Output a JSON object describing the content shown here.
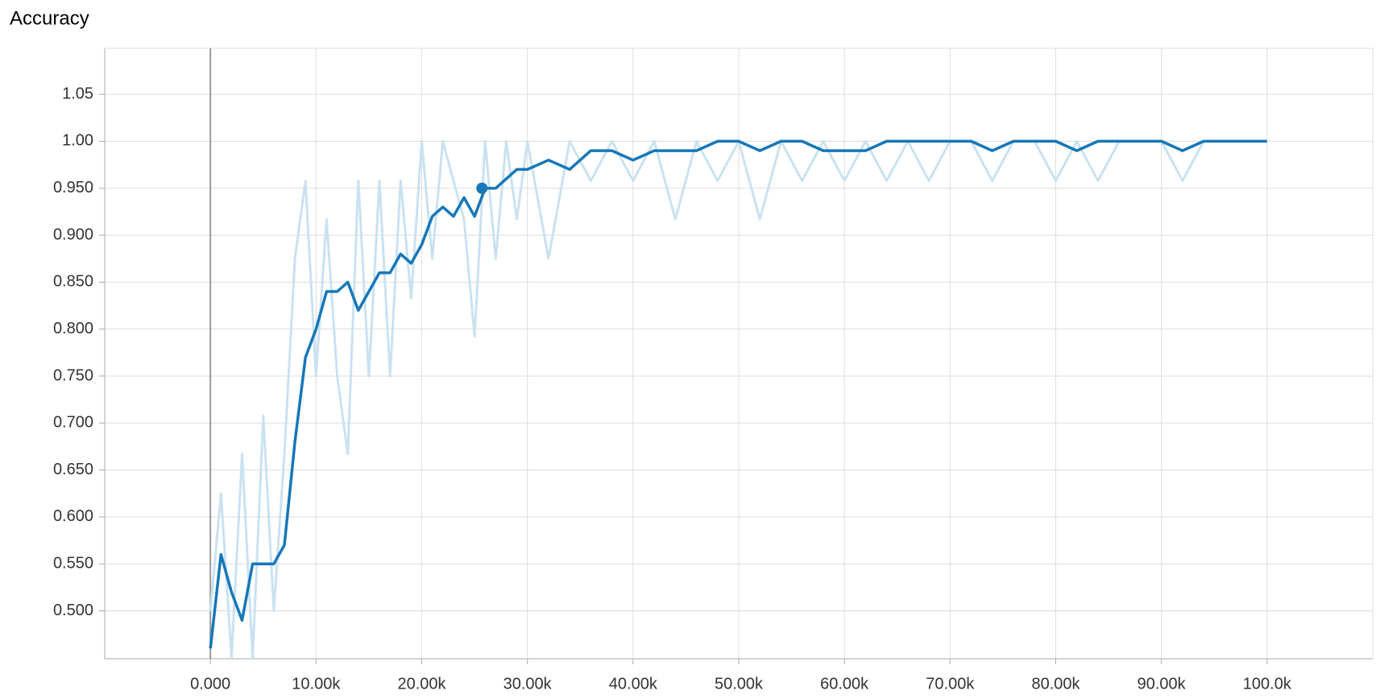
{
  "chart_data": {
    "type": "line",
    "title": "Accuracy",
    "x": [
      0,
      1000,
      2000,
      3000,
      4000,
      5000,
      6000,
      7000,
      8000,
      9000,
      10000,
      11000,
      12000,
      13000,
      14000,
      15000,
      16000,
      17000,
      18000,
      19000,
      20000,
      21000,
      22000,
      23000,
      24000,
      25000,
      26000,
      27000,
      28000,
      29000,
      30000,
      32000,
      34000,
      36000,
      38000,
      40000,
      42000,
      44000,
      46000,
      48000,
      50000,
      52000,
      54000,
      56000,
      58000,
      60000,
      62000,
      64000,
      66000,
      68000,
      70000,
      72000,
      74000,
      76000,
      78000,
      80000,
      82000,
      84000,
      86000,
      88000,
      90000,
      92000,
      94000,
      96000,
      98000,
      100000
    ],
    "series": [
      {
        "color": "#c9e2f1",
        "values": [
          0.5,
          0.625,
          0.45,
          0.667,
          0.45,
          0.708,
          0.5,
          0.667,
          0.875,
          0.958,
          0.75,
          0.917,
          0.75,
          0.667,
          0.958,
          0.75,
          0.958,
          0.75,
          0.958,
          0.833,
          1.0,
          0.875,
          1.0,
          0.958,
          0.917,
          0.792,
          1.0,
          0.875,
          1.0,
          0.917,
          1.0,
          0.875,
          1.0,
          0.958,
          1.0,
          0.958,
          1.0,
          0.917,
          1.0,
          0.958,
          1.0,
          0.917,
          1.0,
          0.958,
          1.0,
          0.958,
          1.0,
          0.958,
          1.0,
          0.958,
          1.0,
          1.0,
          0.958,
          1.0,
          1.0,
          0.958,
          1.0,
          0.958,
          1.0,
          1.0,
          1.0,
          0.958,
          1.0,
          1.0,
          1.0,
          1.0
        ]
      },
      {
        "color": "#1677b8",
        "values": [
          0.46,
          0.56,
          0.52,
          0.49,
          0.55,
          0.55,
          0.55,
          0.57,
          0.68,
          0.77,
          0.8,
          0.84,
          0.84,
          0.85,
          0.82,
          0.84,
          0.86,
          0.86,
          0.88,
          0.87,
          0.89,
          0.92,
          0.93,
          0.92,
          0.94,
          0.92,
          0.95,
          0.95,
          0.96,
          0.97,
          0.97,
          0.98,
          0.97,
          0.99,
          0.99,
          0.98,
          0.99,
          0.99,
          0.99,
          1.0,
          1.0,
          0.99,
          1.0,
          1.0,
          0.99,
          0.99,
          0.99,
          1.0,
          1.0,
          1.0,
          1.0,
          1.0,
          0.99,
          1.0,
          1.0,
          1.0,
          0.99,
          1.0,
          1.0,
          1.0,
          1.0,
          0.99,
          1.0,
          1.0,
          1.0,
          1.0
        ]
      }
    ],
    "highlight": {
      "x": 25700,
      "y": 0.95
    },
    "xlim": [
      -10000,
      110000
    ],
    "xticks": [
      {
        "value": 0,
        "label": "0.000"
      },
      {
        "value": 10000,
        "label": "10.00k"
      },
      {
        "value": 20000,
        "label": "20.00k"
      },
      {
        "value": 30000,
        "label": "30.00k"
      },
      {
        "value": 40000,
        "label": "40.00k"
      },
      {
        "value": 50000,
        "label": "50.00k"
      },
      {
        "value": 60000,
        "label": "60.00k"
      },
      {
        "value": 70000,
        "label": "70.00k"
      },
      {
        "value": 80000,
        "label": "80.00k"
      },
      {
        "value": 90000,
        "label": "90.00k"
      },
      {
        "value": 100000,
        "label": "100.0k"
      }
    ],
    "ylim": [
      0.449,
      1.099
    ],
    "yticks": [
      {
        "value": 0.5,
        "label": "0.500"
      },
      {
        "value": 0.55,
        "label": "0.550"
      },
      {
        "value": 0.6,
        "label": "0.600"
      },
      {
        "value": 0.65,
        "label": "0.650"
      },
      {
        "value": 0.7,
        "label": "0.700"
      },
      {
        "value": 0.75,
        "label": "0.750"
      },
      {
        "value": 0.8,
        "label": "0.800"
      },
      {
        "value": 0.85,
        "label": "0.850"
      },
      {
        "value": 0.9,
        "label": "0.900"
      },
      {
        "value": 0.95,
        "label": "0.950"
      },
      {
        "value": 1.0,
        "label": "1.00"
      },
      {
        "value": 1.05,
        "label": "1.05"
      }
    ],
    "grid": true
  }
}
